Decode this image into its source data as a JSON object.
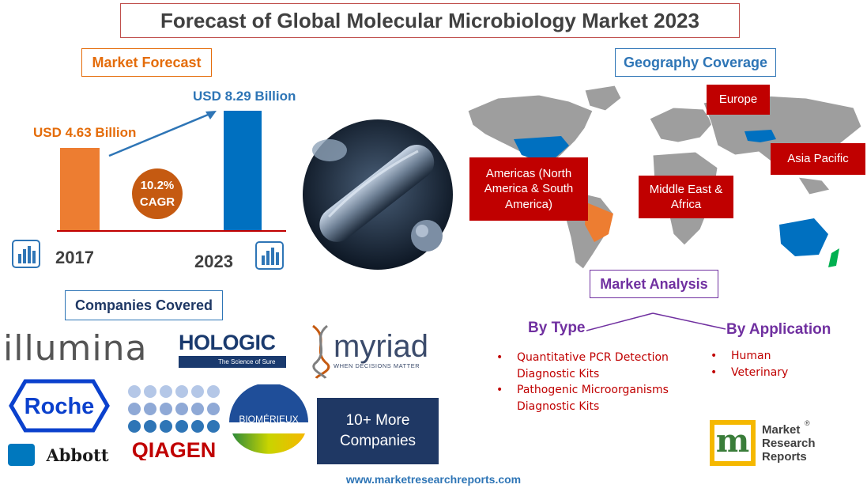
{
  "title": "Forecast of Global Molecular Microbiology Market 2023",
  "market_forecast": {
    "label": "Market Forecast",
    "value_2017": "USD 4.63 Billion",
    "value_2023": "USD 8.29 Billion",
    "cagr_value": "10.2%",
    "cagr_label": "CAGR",
    "year_start": "2017",
    "year_end": "2023"
  },
  "geography": {
    "label": "Geography Coverage",
    "regions": {
      "europe": "Europe",
      "americas": "Americas (North America & South America)",
      "middle_east": "Middle East & Africa",
      "asia": "Asia Pacific"
    }
  },
  "companies": {
    "label": "Companies Covered",
    "illumina": "illumina",
    "hologic": "HOLOGIC",
    "hologic_tagline": "The Science of Sure",
    "myriad": "myriad",
    "myriad_tagline": "WHEN DECISIONS MATTER",
    "roche": "Roche",
    "abbott": "Abbott",
    "qiagen": "QIAGEN",
    "biomerieux": "BIOMÉRIEUX",
    "more": "10+ More Companies"
  },
  "market_analysis": {
    "label": "Market Analysis",
    "by_type": {
      "title": "By Type",
      "items": [
        "Quantitative PCR Detection Diagnostic Kits",
        "Pathogenic Microorganisms Diagnostic Kits"
      ]
    },
    "by_application": {
      "title": "By Application",
      "items": [
        "Human",
        "Veterinary"
      ]
    }
  },
  "brand": {
    "line1": "Market",
    "line2": "Research",
    "line3": "Reports"
  },
  "footer_url": "www.marketresearchreports.com",
  "colors": {
    "orange": "#ed7d31",
    "blue": "#0070c0",
    "red": "#c00000",
    "purple": "#7030a0",
    "cagr_circle": "#c55a11"
  }
}
